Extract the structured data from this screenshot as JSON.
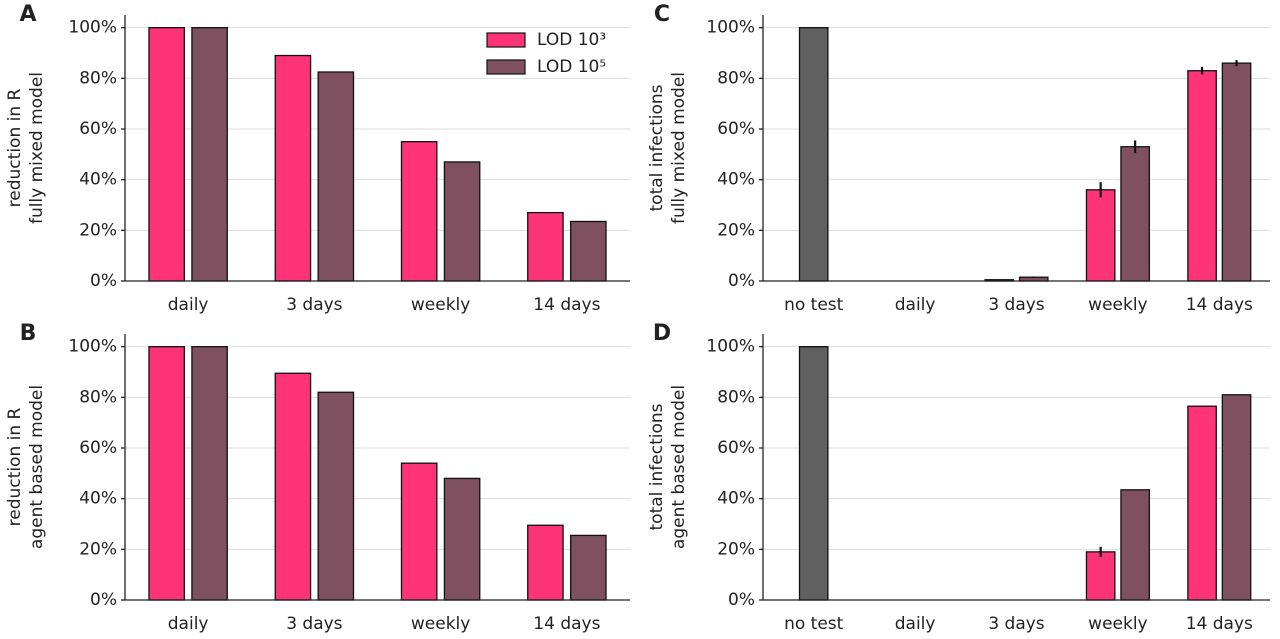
{
  "chart_data": [
    {
      "type": "bar",
      "panel": "A",
      "ylabel": [
        "reduction in R",
        "fully mixed model"
      ],
      "categories": [
        "daily",
        "3 days",
        "weekly",
        "14 days"
      ],
      "series": [
        {
          "name": "LOD 10³",
          "color": "#ff3377",
          "values": [
            100,
            89,
            55,
            27
          ]
        },
        {
          "name": "LOD 10⁵",
          "color": "#7f5060",
          "values": [
            100,
            82.5,
            47,
            23.5
          ]
        }
      ],
      "ylim": [
        0,
        105
      ],
      "yticks": [
        {
          "value": 0,
          "label": "0%"
        },
        {
          "value": 20,
          "label": "20%"
        },
        {
          "value": 40,
          "label": "40%"
        },
        {
          "value": 60,
          "label": "60%"
        },
        {
          "value": 80,
          "label": "80%"
        },
        {
          "value": 100,
          "label": "100%"
        }
      ],
      "grid": true,
      "legend": "upper right"
    },
    {
      "type": "bar",
      "panel": "B",
      "ylabel": [
        "reduction in R",
        "agent based model"
      ],
      "categories": [
        "daily",
        "3 days",
        "weekly",
        "14 days"
      ],
      "series": [
        {
          "color": "#ff3377",
          "values": [
            100,
            89.5,
            54,
            29.5
          ]
        },
        {
          "color": "#7f5060",
          "values": [
            100,
            82,
            48,
            25.5
          ]
        }
      ],
      "ylim": [
        0,
        105
      ],
      "yticks": [
        {
          "value": 0,
          "label": "0%"
        },
        {
          "value": 20,
          "label": "20%"
        },
        {
          "value": 40,
          "label": "40%"
        },
        {
          "value": 60,
          "label": "60%"
        },
        {
          "value": 80,
          "label": "80%"
        },
        {
          "value": 100,
          "label": "100%"
        }
      ],
      "grid": true
    },
    {
      "type": "bar",
      "panel": "C",
      "ylabel": [
        "total infections",
        "fully mixed model"
      ],
      "categories": [
        "no test",
        "daily",
        "3 days",
        "weekly",
        "14 days"
      ],
      "series": [
        {
          "color": "#606060",
          "values": [
            100,
            null,
            null,
            null,
            null
          ]
        },
        {
          "color": "#ff3377",
          "values": [
            null,
            0,
            0.5,
            36,
            83
          ],
          "errors": [
            null,
            null,
            null,
            3,
            1.5
          ]
        },
        {
          "color": "#7f5060",
          "values": [
            null,
            0,
            1.5,
            53,
            86
          ],
          "errors": [
            null,
            null,
            0.3,
            2.5,
            1.2
          ]
        }
      ],
      "ylim": [
        0,
        105
      ],
      "yticks": [
        {
          "value": 0,
          "label": "0%"
        },
        {
          "value": 20,
          "label": "20%"
        },
        {
          "value": 40,
          "label": "40%"
        },
        {
          "value": 60,
          "label": "60%"
        },
        {
          "value": 80,
          "label": "80%"
        },
        {
          "value": 100,
          "label": "100%"
        }
      ],
      "grid": true
    },
    {
      "type": "bar",
      "panel": "D",
      "ylabel": [
        "total infections",
        "agent based model"
      ],
      "categories": [
        "no test",
        "daily",
        "3 days",
        "weekly",
        "14 days"
      ],
      "series": [
        {
          "color": "#606060",
          "values": [
            100,
            null,
            null,
            null,
            null
          ]
        },
        {
          "color": "#ff3377",
          "values": [
            null,
            0,
            0,
            19,
            76.5
          ],
          "errors": [
            null,
            null,
            null,
            2,
            null
          ]
        },
        {
          "color": "#7f5060",
          "values": [
            null,
            0,
            0,
            43.5,
            81
          ]
        }
      ],
      "ylim": [
        0,
        105
      ],
      "yticks": [
        {
          "value": 0,
          "label": "0%"
        },
        {
          "value": 20,
          "label": "20%"
        },
        {
          "value": 40,
          "label": "40%"
        },
        {
          "value": 60,
          "label": "60%"
        },
        {
          "value": 80,
          "label": "80%"
        },
        {
          "value": 100,
          "label": "100%"
        }
      ],
      "grid": true
    }
  ]
}
